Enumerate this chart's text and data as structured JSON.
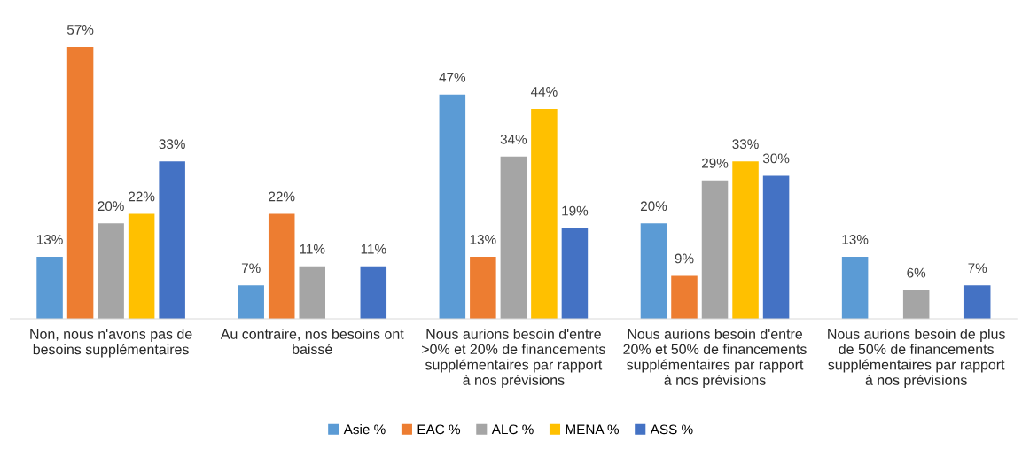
{
  "chart_data": {
    "type": "bar",
    "categories": [
      "Non, nous n'avons pas de\nbesoins supplémentaires",
      "Au contraire, nos besoins ont\nbaissé",
      "Nous aurions besoin d'entre\n>0% et 20% de financements\nsupplémentaires par rapport\nà nos prévisions",
      "Nous aurions besoin d'entre\n20% et 50% de financements\nsupplémentaires par rapport\nà nos prévisions",
      "Nous aurions besoin de plus\nde 50% de financements\nsupplémentaires par rapport\nà nos prévisions"
    ],
    "series": [
      {
        "name": "Asie %",
        "color": "#5b9bd5",
        "values": [
          13,
          7,
          47,
          20,
          13
        ],
        "value_labels": [
          "13%",
          "7%",
          "47%",
          "20%",
          "13%"
        ]
      },
      {
        "name": "EAC %",
        "color": "#ed7d31",
        "values": [
          57,
          22,
          13,
          9,
          null
        ],
        "value_labels": [
          "57%",
          "22%",
          "13%",
          "9%",
          null
        ]
      },
      {
        "name": "ALC %",
        "color": "#a5a5a5",
        "values": [
          20,
          11,
          34,
          29,
          6
        ],
        "value_labels": [
          "20%",
          "11%",
          "34%",
          "29%",
          "6%"
        ]
      },
      {
        "name": "MENA %",
        "color": "#ffc000",
        "values": [
          22,
          null,
          44,
          33,
          null
        ],
        "value_labels": [
          "22%",
          null,
          "44%",
          "33%",
          null
        ]
      },
      {
        "name": "ASS %",
        "color": "#4472c4",
        "values": [
          33,
          11,
          19,
          30,
          7
        ],
        "value_labels": [
          "33%",
          "11%",
          "19%",
          "30%",
          "7%"
        ]
      }
    ],
    "legend": "bottom"
  }
}
